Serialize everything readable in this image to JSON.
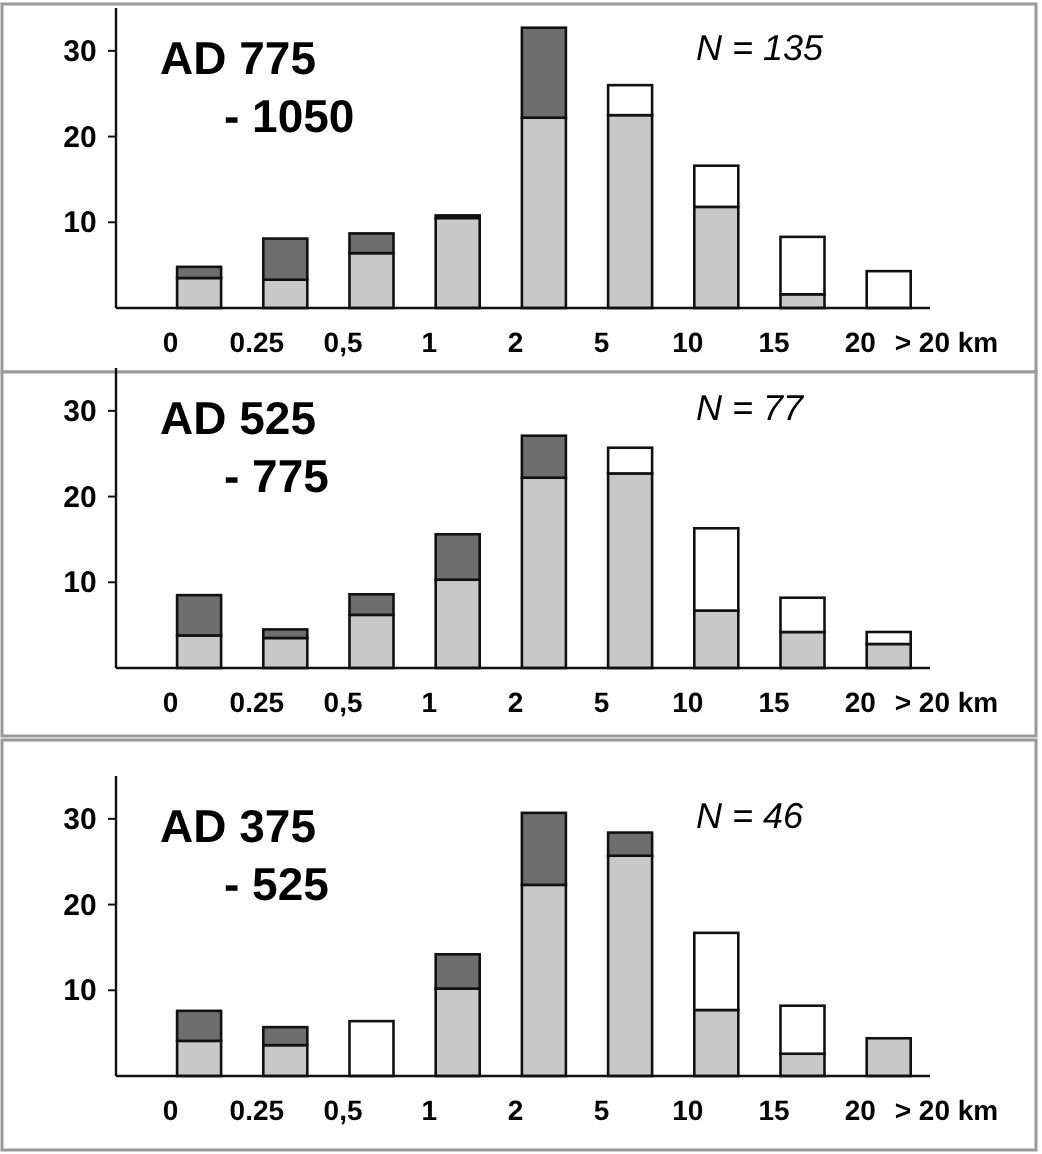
{
  "chart_data": [
    {
      "type": "bar",
      "title": "AD 775",
      "subtitle": "- 1050",
      "annotations": [
        "N = 135"
      ],
      "categories": [
        "0",
        "0.25",
        "0,5",
        "1",
        "2",
        "5",
        "10",
        "15",
        "20",
        "> 20 km"
      ],
      "stacked": true,
      "ylim": [
        0,
        35
      ],
      "yticks": [
        10,
        20,
        30
      ],
      "series": [
        {
          "color": "#c8c8c8",
          "values": [
            3.5,
            3.3,
            6.4,
            10.5,
            22.2,
            22.5,
            11.8,
            1.6,
            0,
            null
          ]
        },
        {
          "color": "#6e6e6e",
          "values": [
            1.3,
            4.8,
            2.3,
            0.3,
            10.5,
            0,
            0,
            0,
            0,
            null
          ]
        },
        {
          "color": "#ffffff",
          "values": [
            0,
            0,
            0,
            0,
            0,
            3.5,
            4.8,
            6.7,
            4.3,
            null
          ]
        }
      ]
    },
    {
      "type": "bar",
      "title": "AD 525",
      "subtitle": "- 775",
      "annotations": [
        "N = 77"
      ],
      "categories": [
        "0",
        "0.25",
        "0,5",
        "1",
        "2",
        "5",
        "10",
        "15",
        "20",
        "> 20 km"
      ],
      "stacked": true,
      "ylim": [
        0,
        35
      ],
      "yticks": [
        10,
        20,
        30
      ],
      "series": [
        {
          "color": "#c8c8c8",
          "values": [
            3.8,
            3.5,
            6.2,
            10.3,
            22.2,
            22.7,
            6.7,
            4.2,
            2.8,
            null
          ]
        },
        {
          "color": "#6e6e6e",
          "values": [
            4.7,
            1.0,
            2.4,
            5.3,
            4.9,
            0,
            0,
            0,
            0,
            null
          ]
        },
        {
          "color": "#ffffff",
          "values": [
            0,
            0,
            0,
            0,
            0,
            3.0,
            9.6,
            4.0,
            1.4,
            null
          ]
        }
      ]
    },
    {
      "type": "bar",
      "title": "AD 375",
      "subtitle": "- 525",
      "annotations": [
        "N = 46"
      ],
      "categories": [
        "0",
        "0.25",
        "0,5",
        "1",
        "2",
        "5",
        "10",
        "15",
        "20",
        "> 20 km"
      ],
      "stacked": true,
      "ylim": [
        0,
        35
      ],
      "yticks": [
        10,
        20,
        30
      ],
      "series": [
        {
          "color": "#c8c8c8",
          "values": [
            4.1,
            3.6,
            0,
            10.2,
            22.3,
            25.7,
            7.7,
            2.6,
            4.4,
            null
          ]
        },
        {
          "color": "#6e6e6e",
          "values": [
            3.5,
            2.1,
            0,
            4.0,
            8.4,
            2.7,
            0,
            0,
            0,
            null
          ]
        },
        {
          "color": "#ffffff",
          "values": [
            0,
            0,
            6.4,
            0,
            0,
            0,
            9.0,
            5.6,
            0,
            null
          ]
        }
      ]
    }
  ]
}
